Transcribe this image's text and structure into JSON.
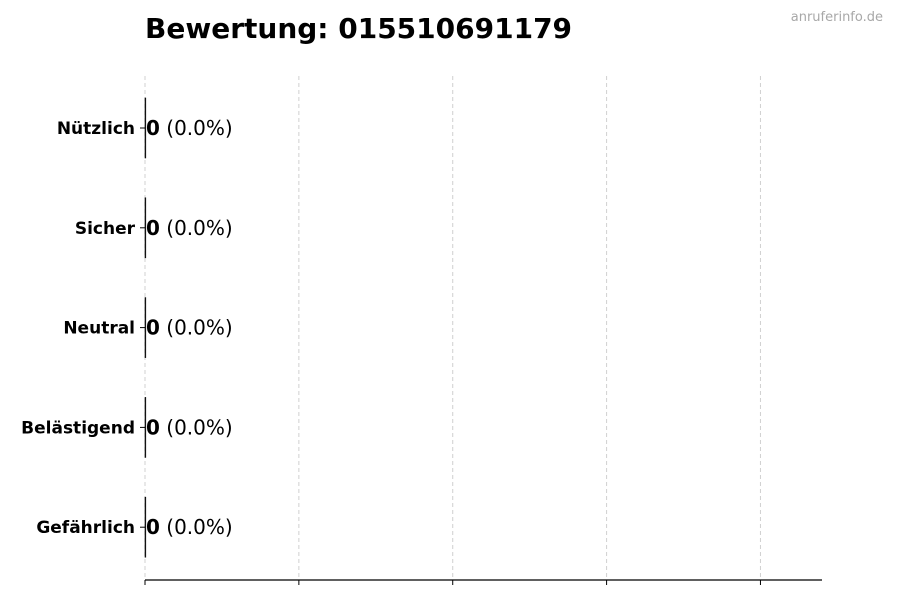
{
  "header": {
    "title": "Bewertung: 015510691179",
    "watermark": "anruferinfo.de"
  },
  "chart_data": {
    "type": "bar",
    "orientation": "horizontal",
    "title": "Bewertung: 015510691179",
    "categories": [
      "Nützlich",
      "Sicher",
      "Neutral",
      "Belästigend",
      "Gefährlich"
    ],
    "values": [
      0,
      0,
      0,
      0,
      0
    ],
    "data_labels": [
      {
        "count": "0",
        "percent": "(0.0%)"
      },
      {
        "count": "0",
        "percent": "(0.0%)"
      },
      {
        "count": "0",
        "percent": "(0.0%)"
      },
      {
        "count": "0",
        "percent": "(0.0%)"
      },
      {
        "count": "0",
        "percent": "(0.0%)"
      }
    ],
    "xlim": [
      0,
      1.1
    ],
    "xticks": [
      0,
      0.25,
      0.5,
      0.75,
      1.0
    ],
    "xtick_labels_shown": false,
    "grid": "x, dashed",
    "colors": {
      "bar_edge": "#000000",
      "grid": "#d0d0d0",
      "text": "#000000",
      "watermark": "#a8a8a8"
    }
  }
}
